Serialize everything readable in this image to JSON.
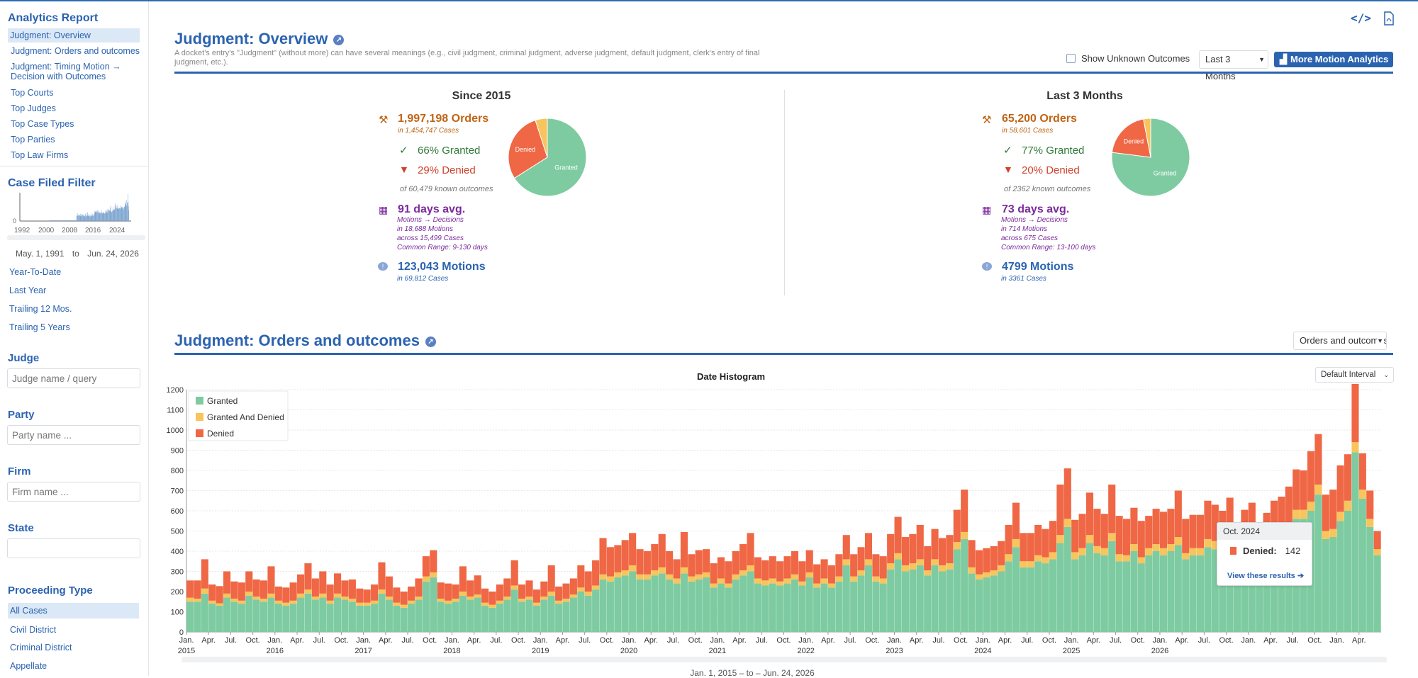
{
  "sidebar": {
    "title": "Analytics Report",
    "items": [
      {
        "label": "Judgment: Overview",
        "active": true
      },
      {
        "label": "Judgment: Orders and outcomes"
      },
      {
        "label": "Judgment: Timing Motion →"
      },
      {
        "label": "Decision with Outcomes"
      },
      {
        "label": "Top Courts"
      },
      {
        "label": "Top Judges"
      },
      {
        "label": "Top Case Types"
      },
      {
        "label": "Top Parties"
      },
      {
        "label": "Top Law Firms"
      }
    ],
    "case_filed_filter": {
      "title": "Case Filed Filter",
      "axis_zero": "0",
      "years": [
        "1992",
        "2000",
        "2008",
        "2016",
        "2024"
      ],
      "from": "May. 1, 1991",
      "to_word": "to",
      "to": "Jun. 24, 2026",
      "presets": [
        "Year-To-Date",
        "Last Year",
        "Trailing 12 Mos.",
        "Trailing 5 Years"
      ]
    },
    "judge": {
      "title": "Judge",
      "placeholder": "Judge name / query"
    },
    "party": {
      "title": "Party",
      "placeholder": "Party name ..."
    },
    "firm": {
      "title": "Firm",
      "placeholder": "Firm name ..."
    },
    "state": {
      "title": "State",
      "placeholder": ""
    },
    "proceeding": {
      "title": "Proceeding Type",
      "items": [
        "All Cases",
        "Civil District",
        "Criminal District",
        "Appellate"
      ]
    }
  },
  "overview": {
    "title": "Judgment: Overview",
    "description": "A docket's entry's \"Judgment\" (without more) can have several meanings (e.g., civil judgment, criminal judgment, adverse judgment, default judgment, clerk's entry of final judgment, etc.).",
    "show_unknown_label": "Show Unknown Outcomes",
    "range_select": "Last 3 Months",
    "more_button": "More Motion Analytics",
    "panels": [
      {
        "heading": "Since 2015",
        "orders": "1,997,198 Orders",
        "orders_cases": "in 1,454,747 Cases",
        "granted": "66% Granted",
        "denied": "29% Denied",
        "known": "of 60,479 known outcomes",
        "pie": {
          "granted": 66,
          "denied": 29,
          "granted_and_denied": 5,
          "granted_label": "Granted",
          "denied_label": "Denied"
        },
        "days": "91 days avg.",
        "days_sub1": "Motions → Decisions",
        "days_sub2": "in 18,688 Motions",
        "days_sub3": "across 15,499 Cases",
        "days_sub4": "Common Range: 9-130 days",
        "motions": "123,043 Motions",
        "motions_cases": "in 69,812 Cases"
      },
      {
        "heading": "Last 3 Months",
        "orders": "65,200 Orders",
        "orders_cases": "in 58,601 Cases",
        "granted": "77% Granted",
        "denied": "20% Denied",
        "known": "of 2362 known outcomes",
        "pie": {
          "granted": 77,
          "denied": 20,
          "granted_and_denied": 3,
          "granted_label": "Granted",
          "denied_label": "Denied"
        },
        "days": "73 days avg.",
        "days_sub1": "Motions → Decisions",
        "days_sub2": "in 714 Motions",
        "days_sub3": "across 675 Cases",
        "days_sub4": "Common Range: 13-100 days",
        "motions": "4799 Motions",
        "motions_cases": "in 3361 Cases"
      }
    ]
  },
  "orders_section": {
    "title": "Judgment: Orders and outcomes",
    "select": "Orders and outcomes",
    "interval_select": "Default Interval",
    "date_range": "Jan. 1, 2015 – to – Jun. 24, 2026",
    "tooltip": {
      "month": "Oct. 2024",
      "label": "Denied:",
      "value": "142",
      "link": "View these results"
    }
  },
  "colors": {
    "granted": "#7ecba1",
    "granted_and_denied": "#f8c45c",
    "denied": "#ef6745",
    "accent": "#2b63b0"
  },
  "chart_data": {
    "type": "bar",
    "stacked": true,
    "title": "Date Histogram",
    "ylim": [
      0,
      1200
    ],
    "yticks": [
      0,
      100,
      200,
      300,
      400,
      500,
      600,
      700,
      800,
      900,
      1000,
      1100,
      1200
    ],
    "x_month_labels": [
      "Jan.",
      "Apr.",
      "Jul.",
      "Oct."
    ],
    "years": [
      "2015",
      "2016",
      "2017",
      "2018",
      "2019",
      "2020",
      "2021",
      "2022",
      "2023",
      "2024",
      "2025",
      "2026"
    ],
    "start_year": 2015,
    "legend": [
      {
        "name": "Granted",
        "color": "#7ecba1"
      },
      {
        "name": "Granted And Denied",
        "color": "#f8c45c"
      },
      {
        "name": "Denied",
        "color": "#ef6745"
      }
    ],
    "series": [
      {
        "name": "Granted",
        "values": [
          150,
          150,
          190,
          140,
          130,
          170,
          150,
          140,
          180,
          160,
          150,
          170,
          140,
          130,
          140,
          170,
          190,
          160,
          170,
          140,
          170,
          160,
          150,
          130,
          130,
          140,
          190,
          160,
          130,
          120,
          140,
          160,
          250,
          270,
          150,
          140,
          150,
          180,
          160,
          170,
          130,
          120,
          140,
          160,
          210,
          150,
          160,
          130,
          160,
          180,
          140,
          150,
          170,
          200,
          180,
          210,
          260,
          250,
          270,
          280,
          300,
          260,
          260,
          280,
          290,
          260,
          240,
          290,
          250,
          260,
          270,
          220,
          240,
          220,
          260,
          280,
          300,
          240,
          230,
          240,
          230,
          240,
          260,
          230,
          270,
          220,
          240,
          220,
          250,
          330,
          250,
          280,
          330,
          250,
          240,
          310,
          360,
          300,
          310,
          330,
          280,
          330,
          300,
          310,
          410,
          460,
          290,
          260,
          270,
          280,
          300,
          350,
          420,
          320,
          320,
          350,
          340,
          360,
          440,
          520,
          360,
          380,
          440,
          390,
          380,
          450,
          350,
          350,
          400,
          340,
          380,
          400,
          380,
          400,
          430,
          360,
          380,
          380,
          420,
          410,
          390,
          430,
          350,
          390,
          410,
          320,
          370,
          420,
          430,
          470,
          560,
          560,
          600,
          680,
          460,
          470,
          550,
          600,
          890,
          660,
          520,
          380
        ]
      },
      {
        "name": "Granted And Denied",
        "values": [
          20,
          15,
          25,
          15,
          12,
          20,
          15,
          15,
          20,
          15,
          15,
          20,
          15,
          15,
          15,
          20,
          20,
          15,
          20,
          15,
          20,
          15,
          15,
          15,
          15,
          15,
          20,
          15,
          15,
          15,
          15,
          15,
          25,
          25,
          15,
          15,
          15,
          20,
          15,
          15,
          15,
          15,
          15,
          15,
          20,
          15,
          15,
          15,
          15,
          20,
          15,
          15,
          15,
          20,
          20,
          20,
          25,
          25,
          25,
          25,
          30,
          25,
          25,
          25,
          30,
          25,
          25,
          30,
          25,
          25,
          25,
          20,
          25,
          20,
          25,
          25,
          30,
          25,
          25,
          25,
          20,
          25,
          25,
          20,
          25,
          20,
          25,
          20,
          25,
          30,
          25,
          25,
          30,
          25,
          25,
          30,
          30,
          30,
          30,
          30,
          25,
          30,
          30,
          30,
          35,
          35,
          30,
          25,
          25,
          25,
          30,
          35,
          40,
          30,
          30,
          30,
          30,
          35,
          40,
          40,
          35,
          35,
          40,
          35,
          35,
          40,
          35,
          30,
          35,
          30,
          35,
          35,
          35,
          35,
          40,
          30,
          35,
          35,
          40,
          40,
          35,
          40,
          30,
          35,
          40,
          30,
          35,
          40,
          40,
          40,
          45,
          45,
          45,
          50,
          40,
          40,
          45,
          50,
          50,
          45,
          40,
          30
        ]
      },
      {
        "name": "Denied",
        "values": [
          85,
          90,
          145,
          80,
          85,
          110,
          85,
          90,
          100,
          85,
          90,
          135,
          70,
          75,
          90,
          95,
          130,
          90,
          110,
          80,
          100,
          80,
          95,
          70,
          65,
          80,
          135,
          100,
          75,
          65,
          70,
          90,
          100,
          110,
          80,
          85,
          70,
          125,
          80,
          95,
          70,
          65,
          80,
          90,
          125,
          70,
          80,
          65,
          75,
          130,
          70,
          75,
          80,
          110,
          100,
          125,
          180,
          145,
          135,
          150,
          160,
          125,
          115,
          130,
          165,
          115,
          95,
          175,
          110,
          120,
          115,
          100,
          105,
          110,
          115,
          130,
          160,
          105,
          100,
          110,
          100,
          110,
          115,
          100,
          110,
          95,
          95,
          90,
          110,
          120,
          110,
          115,
          130,
          110,
          110,
          145,
          180,
          140,
          145,
          170,
          120,
          150,
          135,
          140,
          160,
          210,
          135,
          120,
          120,
          120,
          120,
          145,
          180,
          140,
          140,
          150,
          140,
          155,
          250,
          250,
          160,
          170,
          210,
          185,
          170,
          240,
          190,
          180,
          180,
          180,
          160,
          175,
          180,
          175,
          230,
          170,
          165,
          165,
          190,
          180,
          175,
          195,
          160,
          180,
          190,
          150,
          185,
          190,
          200,
          210,
          200,
          195,
          250,
          250,
          180,
          195,
          230,
          230,
          300,
          180,
          140,
          90
        ]
      }
    ]
  }
}
